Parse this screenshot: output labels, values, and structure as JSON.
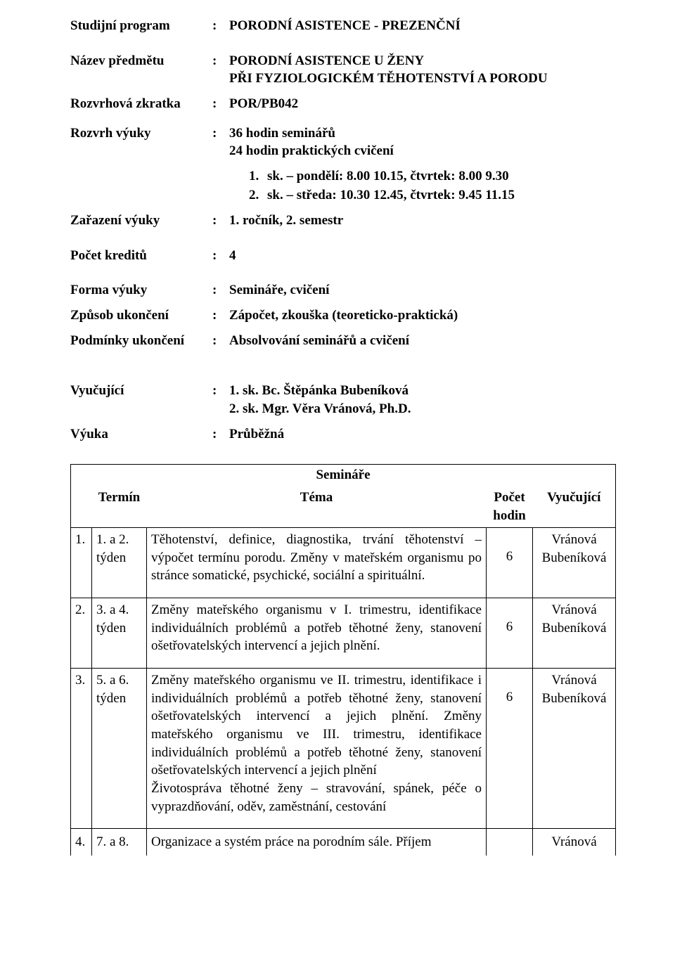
{
  "info": {
    "program_label": "Studijní program",
    "program_value": "PORODNÍ ASISTENCE - PREZENČNÍ",
    "subject_label": "Název předmětu",
    "subject_value_line1": "PORODNÍ ASISTENCE U ŽENY",
    "subject_value_line2": "PŘI FYZIOLOGICKÉM TĚHOTENSTVÍ A PORODU",
    "code_label": "Rozvrhová zkratka",
    "code_value": "POR/PB042",
    "schedule_label": "Rozvrh výuky",
    "schedule_value_line1": "36 hodin seminářů",
    "schedule_value_line2": "24 hodin praktických cvičení",
    "sched_item1_num": "1.",
    "sched_item1_text": "sk. – pondělí:  8.00  10.15, čtvrtek: 8.00  9.30",
    "sched_item2_num": "2.",
    "sched_item2_text": "sk. – středa: 10.30  12.45, čtvrtek: 9.45  11.15",
    "placement_label": "Zařazení výuky",
    "placement_value": "1. ročník, 2. semestr",
    "credits_label": "Počet kreditů",
    "credits_value": "4",
    "form_label": "Forma výuky",
    "form_value": "Semináře, cvičení",
    "completion_label": "Způsob ukončení",
    "completion_value": "Zápočet, zkouška (teoreticko-praktická)",
    "conditions_label": "Podmínky ukončení",
    "conditions_value": "Absolvování seminářů a cvičení",
    "teacher_label": "Vyučující",
    "teacher_value_line1": "1. sk. Bc. Štěpánka Bubeníková",
    "teacher_value_line2": "2. sk. Mgr. Věra Vránová, Ph.D.",
    "mode_label": "Výuka",
    "mode_value": "Průběžná"
  },
  "table": {
    "section_title": "Semináře",
    "head": {
      "col1": "Termín",
      "col2": "Téma",
      "col3_line1": "Počet",
      "col3_line2": "hodin",
      "col4": "Vyučující"
    },
    "rows": [
      {
        "num": "1.",
        "term_line1": "1. a 2.",
        "term_line2": "týden",
        "topic": "Těhotenství, definice, diagnostika, trvání těhotenství – výpočet termínu porodu. Změny v mateřském organismu po stránce somatické, psychické, sociální a spirituální.",
        "hours": "6",
        "teacher_line1": "Vránová",
        "teacher_line2": "Bubeníková"
      },
      {
        "num": "2.",
        "term_line1": "3. a 4.",
        "term_line2": "týden",
        "topic": "Změny mateřského organismu v I. trimestru, identifikace individuálních problémů a potřeb těhotné ženy, stanovení ošetřovatelských intervencí a jejich plnění.",
        "hours": "6",
        "teacher_line1": "Vránová",
        "teacher_line2": "Bubeníková"
      },
      {
        "num": "3.",
        "term_line1": "5. a 6.",
        "term_line2": "týden",
        "topic": "Změny mateřského organismu ve II. trimestru, identifikace i individuálních problémů a potřeb těhotné ženy, stanovení ošetřovatelských intervencí a jejich plnění. Změny mateřského organismu ve III. trimestru, identifikace individuálních problémů a potřeb těhotné ženy, stanovení ošetřovatelských intervencí a jejich plnění\nŽivotospráva těhotné ženy – stravování, spánek, péče o vyprazdňování, oděv, zaměstnání, cestování",
        "hours": "6",
        "teacher_line1": "Vránová",
        "teacher_line2": "Bubeníková"
      }
    ],
    "last_row": {
      "num": "4.",
      "term": "7. a 8.",
      "topic": "Organizace a systém práce na porodním sále. Příjem",
      "teacher": "Vránová"
    }
  }
}
